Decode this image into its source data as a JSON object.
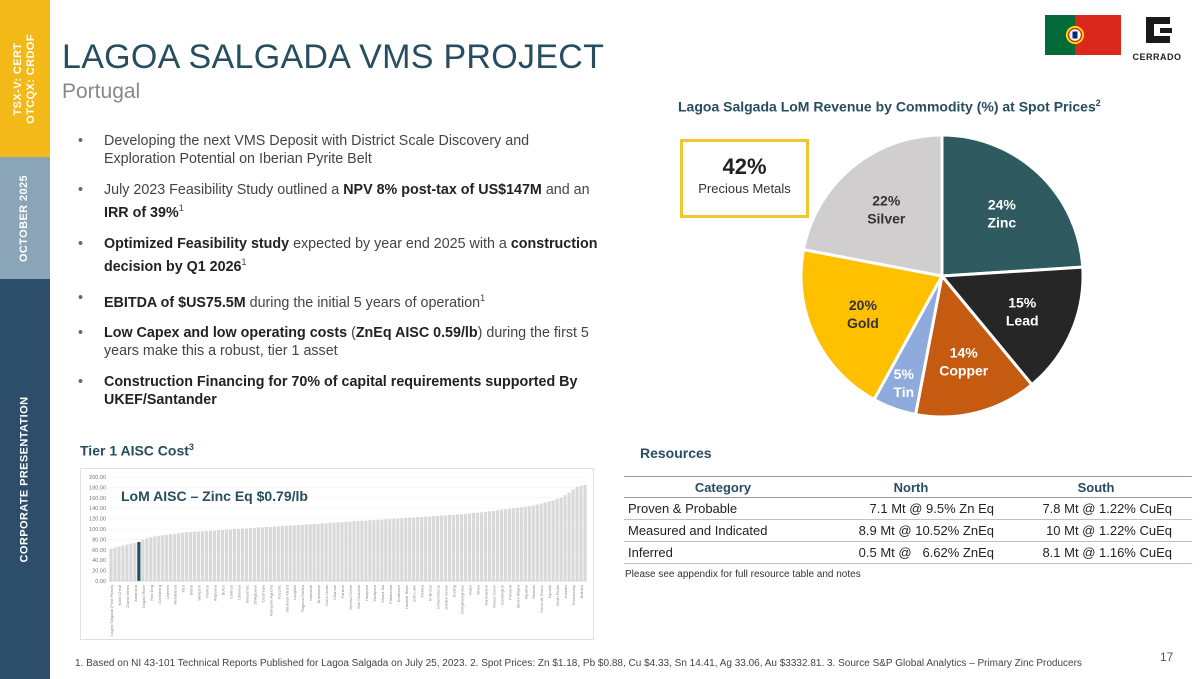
{
  "sidebar": {
    "ticker_line1": "TSX-V: CERT",
    "ticker_line2": "OTCQX: CRDOF",
    "date": "OCTOBER 2025",
    "label": "CORPORATE PRESENTATION"
  },
  "header": {
    "title": "LAGOA SALGADA VMS PROJECT",
    "subtitle": "Portugal",
    "logo_text": "CERRADO"
  },
  "bullets": [
    {
      "parts": [
        {
          "t": "Developing the next VMS Deposit with District Scale Discovery and Exploration Potential on Iberian Pyrite Belt",
          "b": false
        }
      ]
    },
    {
      "parts": [
        {
          "t": "July 2023 Feasibility Study outlined a ",
          "b": false
        },
        {
          "t": "NPV 8% post-tax of US$147M",
          "b": true
        },
        {
          "t": " and an ",
          "b": false
        },
        {
          "t": "IRR of 39%",
          "b": true
        },
        {
          "t": "1",
          "b": false,
          "sup": true
        }
      ]
    },
    {
      "parts": [
        {
          "t": "Optimized Feasibility study",
          "b": true
        },
        {
          "t": " expected by year end 2025 with a ",
          "b": false
        },
        {
          "t": "construction decision by Q1 2026",
          "b": true
        },
        {
          "t": "1",
          "b": false,
          "sup": true
        }
      ]
    },
    {
      "parts": [
        {
          "t": "EBITDA of $US75.5M",
          "b": true
        },
        {
          "t": " during the initial 5 years of operation",
          "b": false
        },
        {
          "t": "1",
          "b": false,
          "sup": true
        }
      ]
    },
    {
      "parts": [
        {
          "t": "Low Capex and low operating costs",
          "b": true
        },
        {
          "t": " (",
          "b": false
        },
        {
          "t": "ZnEq AISC 0.59/lb",
          "b": true
        },
        {
          "t": ") during the first 5 years make this a robust, tier 1 asset",
          "b": false
        }
      ]
    },
    {
      "parts": [
        {
          "t": "Construction Financing for 70% of capital requirements supported By UKEF/Santander",
          "b": true
        }
      ]
    }
  ],
  "aisc": {
    "heading": "Tier 1 AISC Cost",
    "heading_sup": "3",
    "chart_label": "LoM AISC – Zinc Eq $0.79/lb",
    "y_ticks": [
      "200.00",
      "180.00",
      "160.00",
      "140.00",
      "120.00",
      "100.00",
      "80.00",
      "60.00",
      "40.00",
      "20.00",
      "0.00"
    ],
    "x_labels": [
      "Lagoa Salgada (First Phase)",
      "Kolid Chedi",
      "Zawar Mines",
      "Antamina",
      "Dugald River",
      "Red Dog",
      "Gamsberg",
      "Lisheen",
      "Mehdiabad",
      "Tara",
      "Bisha",
      "Skorpion",
      "Perkoa",
      "Aripuana",
      "Boleo",
      "Caribou",
      "Citronen",
      "Bracemac",
      "Zinkgruvan",
      "Ozernoye",
      "Rampura Agucha",
      "Kazzinc",
      "Sindesar Khurd",
      "Langlois",
      "Rajpura Dariba",
      "Nanisivik",
      "Brunswick",
      "Cerro Lindo",
      "Charcas",
      "Fankou",
      "Greens Creek",
      "San Cristobal",
      "Huayuan",
      "Yauliyacu",
      "Mount Isa",
      "Pallancata",
      "Endeavor",
      "Hackett River",
      "Izok Lake",
      "Tarkwa",
      "El Brocal",
      "Uchucchacua",
      "Golden Grove",
      "Jinding",
      "Dongshengmiao",
      "Huize",
      "Wusu",
      "Kanmantoo",
      "Neves Corvo",
      "Cannington",
      "Porvenir",
      "Sinchi Wayra",
      "Aljustrel",
      "Stratoni",
      "Cerro de Pasco",
      "Kipushi",
      "Rosh Pinah",
      "Kovdor",
      "Pomorzany",
      "Boliden"
    ]
  },
  "pie": {
    "title": "Lagoa Salgada LoM Revenue by Commodity (%) at Spot Prices",
    "title_sup": "2",
    "callout_value": "42%",
    "callout_label": "Precious Metals"
  },
  "chart_data": [
    {
      "type": "pie",
      "title": "Lagoa Salgada LoM Revenue by Commodity (%) at Spot Prices",
      "slices": [
        {
          "label": "Zinc",
          "value": 24,
          "text": "24%",
          "color": "#2f5a5f"
        },
        {
          "label": "Lead",
          "value": 15,
          "text": "15%",
          "color": "#262626"
        },
        {
          "label": "Copper",
          "value": 14,
          "text": "14%",
          "color": "#c55a11"
        },
        {
          "label": "Tin",
          "value": 5,
          "text": "5%",
          "color": "#8faadc"
        },
        {
          "label": "Gold",
          "value": 20,
          "text": "20%",
          "color": "#ffc000"
        },
        {
          "label": "Silver",
          "value": 22,
          "text": "22%",
          "color": "#d0cece"
        }
      ]
    },
    {
      "type": "bar",
      "title": "Tier 1 AISC Cost",
      "ylim": [
        0,
        200
      ],
      "highlight_index": 7,
      "bar_color": "#d9d9d9",
      "highlight_color": "#264d60",
      "values": [
        62,
        64,
        66,
        68,
        70,
        72,
        73,
        75,
        79,
        82,
        84,
        86,
        87,
        88,
        89,
        90,
        91,
        92,
        93,
        94,
        94,
        95,
        95,
        96,
        96,
        97,
        97,
        98,
        98,
        99,
        99,
        100,
        100,
        101,
        101,
        102,
        102,
        103,
        103,
        104,
        104,
        105,
        105,
        106,
        106,
        107,
        107,
        108,
        108,
        109,
        109,
        110,
        110,
        111,
        111,
        112,
        112,
        113,
        113,
        114,
        114,
        115,
        115,
        116,
        116,
        117,
        117,
        118,
        118,
        119,
        119,
        120,
        120,
        121,
        121,
        122,
        122,
        123,
        123,
        124,
        124,
        125,
        125,
        126,
        126,
        127,
        127,
        128,
        128,
        129,
        130,
        131,
        131,
        132,
        133,
        134,
        135,
        136,
        137,
        138,
        139,
        140,
        141,
        142,
        143,
        144,
        145,
        147,
        149,
        151,
        153,
        155,
        158,
        161,
        165,
        170,
        176,
        181,
        183,
        185
      ]
    }
  ],
  "resources": {
    "heading": "Resources",
    "headers": [
      "Category",
      "North",
      "South"
    ],
    "rows": [
      [
        "Proven & Probable",
        "7.1 Mt @ 9.5% Zn Eq",
        "7.8 Mt @ 1.22% CuEq"
      ],
      [
        "Measured and Indicated",
        "8.9 Mt @ 10.52% ZnEq",
        "10 Mt @ 1.22% CuEq"
      ],
      [
        "Inferred",
        "0.5 Mt @   6.62% ZnEq",
        "8.1 Mt @ 1.16% CuEq"
      ]
    ],
    "note": "Please see appendix for full resource table and notes"
  },
  "footer": {
    "text": "1. Based on NI 43-101 Technical Reports Published for Lagoa Salgada on July 25, 2023. 2. Spot Prices: Zn $1.18, Pb $0.88, Cu $4.33, Sn 14.41, Ag 33.06, Au $3332.81.  3. Source S&P Global Analytics – Primary Zinc Producers",
    "page_number": "17"
  },
  "colors": {
    "brand_dark": "#264d60",
    "brand_yellow": "#f2b918",
    "brand_slate": "#2d4e6b"
  }
}
